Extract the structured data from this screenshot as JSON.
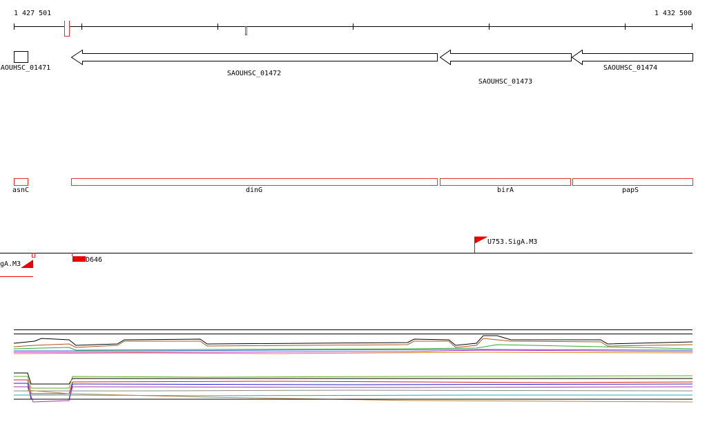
{
  "ruler": {
    "start": "1 427 501",
    "end": "1 432 500"
  },
  "genes": [
    {
      "label": "SAOUHSC_01471"
    },
    {
      "label": "SAOUHSC_01472"
    },
    {
      "label": "SAOUHSC_01473"
    },
    {
      "label": "SAOUHSC_01474"
    }
  ],
  "gene_names": [
    "asnC",
    "dinG",
    "birA",
    "papS"
  ],
  "features": [
    {
      "label": "gA.M3"
    },
    {
      "label": "D646"
    },
    {
      "label": "U753.SigA.M3"
    }
  ]
}
